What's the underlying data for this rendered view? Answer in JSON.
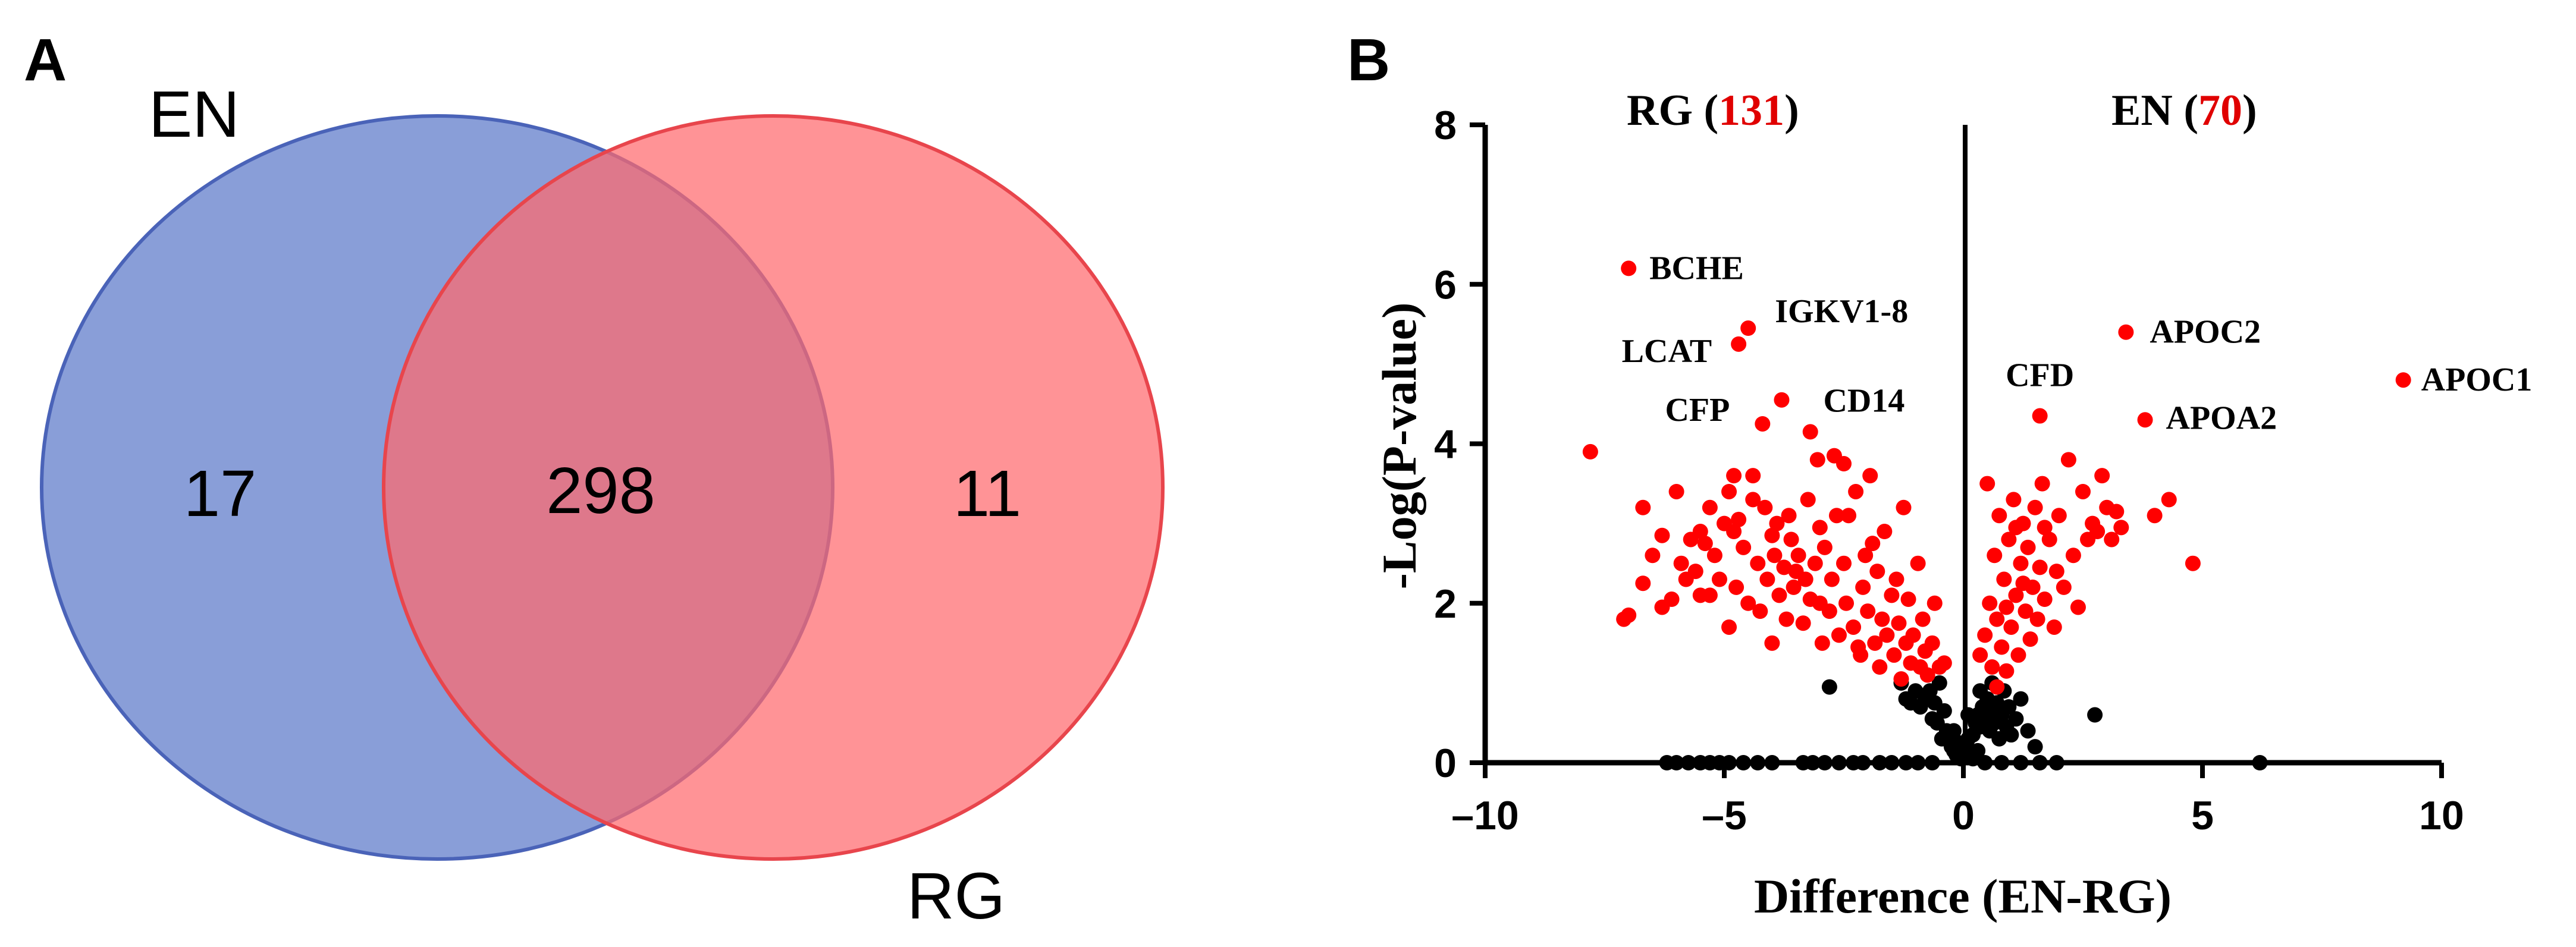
{
  "panels": {
    "a": {
      "letter": "A"
    },
    "b": {
      "letter": "B"
    }
  },
  "colors": {
    "set1_fill": "#5b78c9",
    "set1_stroke": "#4a63b8",
    "set2_fill": "#ff6a6e",
    "set2_stroke": "#e8454c",
    "significant": "#ff0000",
    "not_significant": "#000000"
  },
  "chart_data": [
    {
      "type": "venn",
      "sets": [
        {
          "name": "EN",
          "only": 17
        },
        {
          "name": "RG",
          "only": 11
        }
      ],
      "intersection": 298
    },
    {
      "type": "scatter",
      "subtype": "volcano",
      "xlabel": "Difference (EN-RG)",
      "ylabel": "-Log(P-value)",
      "xlim": [
        -10,
        10
      ],
      "ylim": [
        0,
        8
      ],
      "xticks": [
        "–10",
        "–5",
        "0",
        "5",
        "10"
      ],
      "yticks": [
        "0",
        "2",
        "4",
        "6",
        "8"
      ],
      "groups": [
        {
          "name": "RG",
          "count_label": "131",
          "side": "left"
        },
        {
          "name": "EN",
          "count_label": "70",
          "side": "right"
        }
      ],
      "labeled_points": [
        {
          "label": "BCHE",
          "x": -7.0,
          "y": 6.2
        },
        {
          "label": "IGKV1-8",
          "x": -4.5,
          "y": 5.45
        },
        {
          "label": "LCAT",
          "x": -4.7,
          "y": 5.25
        },
        {
          "label": "CD14",
          "x": -3.8,
          "y": 4.55
        },
        {
          "label": "CFP",
          "x": -4.2,
          "y": 4.25
        },
        {
          "label": "APOC2",
          "x": 3.4,
          "y": 5.4
        },
        {
          "label": "APOC1",
          "x": 9.2,
          "y": 4.8
        },
        {
          "label": "CFD",
          "x": 1.6,
          "y": 4.35
        },
        {
          "label": "APOA2",
          "x": 3.8,
          "y": 4.3
        }
      ],
      "significant_points": [
        [
          -7.8,
          3.9
        ],
        [
          -7.1,
          1.8
        ],
        [
          -7.0,
          1.85
        ],
        [
          -6.7,
          2.25
        ],
        [
          -6.7,
          3.2
        ],
        [
          -6.5,
          2.6
        ],
        [
          -6.3,
          2.85
        ],
        [
          -6.1,
          2.05
        ],
        [
          -6.0,
          3.4
        ],
        [
          -5.9,
          2.5
        ],
        [
          -5.7,
          2.8
        ],
        [
          -5.6,
          2.4
        ],
        [
          -5.5,
          2.9
        ],
        [
          -5.4,
          2.75
        ],
        [
          -5.3,
          3.2
        ],
        [
          -5.3,
          2.1
        ],
        [
          -5.2,
          2.6
        ],
        [
          -5.1,
          2.3
        ],
        [
          -5.0,
          3.0
        ],
        [
          -4.9,
          1.7
        ],
        [
          -4.9,
          3.4
        ],
        [
          -4.8,
          2.9
        ],
        [
          -4.75,
          2.2
        ],
        [
          -4.7,
          3.05
        ],
        [
          -4.6,
          2.7
        ],
        [
          -4.5,
          2.0
        ],
        [
          -4.4,
          3.3
        ],
        [
          -4.3,
          2.5
        ],
        [
          -4.25,
          1.9
        ],
        [
          -4.15,
          3.2
        ],
        [
          -4.1,
          2.3
        ],
        [
          -4.0,
          1.5
        ],
        [
          -3.95,
          2.6
        ],
        [
          -3.9,
          3.0
        ],
        [
          -3.85,
          2.1
        ],
        [
          -3.75,
          2.45
        ],
        [
          -3.7,
          1.8
        ],
        [
          -3.65,
          3.1
        ],
        [
          -3.55,
          2.2
        ],
        [
          -3.5,
          2.4
        ],
        [
          -3.45,
          2.6
        ],
        [
          -3.35,
          1.75
        ],
        [
          -3.3,
          2.3
        ],
        [
          -3.25,
          3.3
        ],
        [
          -3.2,
          2.05
        ],
        [
          -3.1,
          2.5
        ],
        [
          -3.05,
          3.8
        ],
        [
          -3.0,
          2.0
        ],
        [
          -2.95,
          1.5
        ],
        [
          -2.9,
          2.7
        ],
        [
          -2.8,
          1.9
        ],
        [
          -2.75,
          2.3
        ],
        [
          -2.65,
          3.1
        ],
        [
          -2.6,
          1.6
        ],
        [
          -2.5,
          2.5
        ],
        [
          -2.45,
          2.0
        ],
        [
          -2.4,
          3.1
        ],
        [
          -2.3,
          1.7
        ],
        [
          -2.25,
          3.4
        ],
        [
          -2.15,
          1.35
        ],
        [
          -2.1,
          2.2
        ],
        [
          -2.05,
          2.6
        ],
        [
          -2.0,
          1.9
        ],
        [
          -1.95,
          3.6
        ],
        [
          -1.85,
          1.5
        ],
        [
          -1.8,
          2.4
        ],
        [
          -1.75,
          1.2
        ],
        [
          -1.7,
          1.8
        ],
        [
          -1.65,
          2.9
        ],
        [
          -1.6,
          1.6
        ],
        [
          -1.5,
          2.1
        ],
        [
          -1.45,
          1.35
        ],
        [
          -1.4,
          2.3
        ],
        [
          -1.35,
          1.75
        ],
        [
          -1.25,
          3.2
        ],
        [
          -1.2,
          1.5
        ],
        [
          -1.15,
          2.05
        ],
        [
          -1.1,
          1.25
        ],
        [
          -1.05,
          1.6
        ],
        [
          -0.95,
          2.5
        ],
        [
          -0.9,
          1.2
        ],
        [
          -0.85,
          1.8
        ],
        [
          -0.8,
          1.4
        ],
        [
          -0.75,
          1.1
        ],
        [
          -0.65,
          1.5
        ],
        [
          -0.6,
          2.0
        ],
        [
          -0.5,
          1.2
        ],
        [
          -0.4,
          1.25
        ],
        [
          -3.2,
          4.15
        ],
        [
          -2.7,
          3.85
        ],
        [
          -4.8,
          3.6
        ],
        [
          -5.8,
          2.3
        ],
        [
          -6.3,
          1.95
        ],
        [
          -4.0,
          2.85
        ],
        [
          -3.0,
          2.95
        ],
        [
          -1.9,
          2.75
        ],
        [
          -1.3,
          1.05
        ],
        [
          -2.2,
          1.45
        ],
        [
          -3.6,
          2.8
        ],
        [
          -5.5,
          2.1
        ],
        [
          -4.4,
          3.6
        ],
        [
          -2.5,
          3.75
        ],
        [
          0.35,
          1.35
        ],
        [
          0.45,
          1.6
        ],
        [
          0.55,
          2.0
        ],
        [
          0.6,
          1.2
        ],
        [
          0.65,
          2.6
        ],
        [
          0.7,
          1.8
        ],
        [
          0.75,
          3.1
        ],
        [
          0.8,
          1.45
        ],
        [
          0.85,
          2.3
        ],
        [
          0.9,
          1.15
        ],
        [
          0.95,
          2.8
        ],
        [
          1.0,
          1.7
        ],
        [
          1.05,
          3.3
        ],
        [
          1.1,
          2.1
        ],
        [
          1.15,
          1.35
        ],
        [
          1.2,
          2.5
        ],
        [
          1.25,
          3.0
        ],
        [
          1.3,
          1.9
        ],
        [
          1.35,
          2.7
        ],
        [
          1.4,
          1.55
        ],
        [
          1.45,
          2.2
        ],
        [
          1.5,
          3.2
        ],
        [
          1.55,
          1.8
        ],
        [
          1.6,
          2.45
        ],
        [
          1.65,
          3.5
        ],
        [
          1.7,
          2.05
        ],
        [
          1.8,
          2.8
        ],
        [
          1.9,
          1.7
        ],
        [
          1.95,
          2.4
        ],
        [
          2.0,
          3.1
        ],
        [
          2.1,
          2.2
        ],
        [
          2.2,
          3.8
        ],
        [
          2.3,
          2.6
        ],
        [
          2.4,
          1.95
        ],
        [
          2.5,
          3.4
        ],
        [
          2.6,
          2.8
        ],
        [
          2.7,
          3.0
        ],
        [
          2.8,
          2.9
        ],
        [
          2.9,
          3.6
        ],
        [
          3.0,
          3.2
        ],
        [
          3.1,
          2.8
        ],
        [
          3.2,
          3.15
        ],
        [
          3.3,
          2.95
        ],
        [
          4.0,
          3.1
        ],
        [
          4.3,
          3.3
        ],
        [
          4.8,
          2.5
        ],
        [
          0.5,
          3.5
        ],
        [
          1.1,
          2.95
        ],
        [
          0.9,
          1.95
        ],
        [
          1.25,
          2.25
        ],
        [
          0.7,
          0.95
        ],
        [
          1.7,
          2.95
        ]
      ],
      "nonsignificant_points": [
        [
          -6.2,
          0
        ],
        [
          -6.0,
          0
        ],
        [
          -5.75,
          0
        ],
        [
          -5.5,
          0
        ],
        [
          -5.3,
          0
        ],
        [
          -5.1,
          0
        ],
        [
          -4.9,
          0
        ],
        [
          -4.6,
          0
        ],
        [
          -4.3,
          0
        ],
        [
          -4.0,
          0
        ],
        [
          -3.35,
          0
        ],
        [
          -3.15,
          0
        ],
        [
          -2.9,
          0
        ],
        [
          -2.6,
          0
        ],
        [
          -2.3,
          0
        ],
        [
          -2.1,
          0
        ],
        [
          -1.75,
          0
        ],
        [
          -1.5,
          0
        ],
        [
          -1.2,
          0
        ],
        [
          -0.95,
          0
        ],
        [
          -0.65,
          0
        ],
        [
          0.45,
          0
        ],
        [
          0.8,
          0
        ],
        [
          1.2,
          0
        ],
        [
          1.6,
          0
        ],
        [
          1.95,
          0
        ],
        [
          6.2,
          0
        ],
        [
          -2.8,
          0.95
        ],
        [
          -1.3,
          1.0
        ],
        [
          -1.2,
          0.8
        ],
        [
          -1.1,
          0.75
        ],
        [
          -1.0,
          0.9
        ],
        [
          -0.9,
          0.7
        ],
        [
          -0.8,
          0.8
        ],
        [
          -0.7,
          0.9
        ],
        [
          -0.6,
          0.75
        ],
        [
          -0.5,
          1.0
        ],
        [
          -0.4,
          0.65
        ],
        [
          -0.35,
          0.4
        ],
        [
          -0.3,
          0.3
        ],
        [
          -0.25,
          0.2
        ],
        [
          -0.2,
          0.15
        ],
        [
          -0.15,
          0.1
        ],
        [
          -0.1,
          0.25
        ],
        [
          -0.05,
          0.05
        ],
        [
          0.0,
          0.1
        ],
        [
          0.05,
          0.2
        ],
        [
          0.1,
          0.3
        ],
        [
          0.15,
          0.15
        ],
        [
          0.2,
          0.35
        ],
        [
          0.25,
          0.5
        ],
        [
          0.3,
          0.6
        ],
        [
          0.35,
          0.45
        ],
        [
          0.4,
          0.7
        ],
        [
          0.45,
          0.55
        ],
        [
          0.5,
          0.8
        ],
        [
          0.55,
          0.4
        ],
        [
          0.6,
          0.65
        ],
        [
          0.65,
          0.5
        ],
        [
          0.7,
          0.75
        ],
        [
          0.75,
          0.3
        ],
        [
          0.8,
          0.6
        ],
        [
          0.85,
          0.9
        ],
        [
          0.9,
          0.45
        ],
        [
          0.95,
          0.7
        ],
        [
          1.0,
          0.35
        ],
        [
          1.1,
          0.55
        ],
        [
          1.2,
          0.8
        ],
        [
          1.35,
          0.4
        ],
        [
          1.5,
          0.2
        ],
        [
          2.75,
          0.6
        ],
        [
          -0.55,
          0.5
        ],
        [
          -0.45,
          0.3
        ],
        [
          0.2,
          0.05
        ],
        [
          0.3,
          0.15
        ],
        [
          -0.2,
          0.4
        ],
        [
          0.1,
          0.6
        ],
        [
          0.35,
          0.9
        ],
        [
          0.6,
          1.0
        ],
        [
          -0.65,
          0.55
        ]
      ]
    }
  ]
}
